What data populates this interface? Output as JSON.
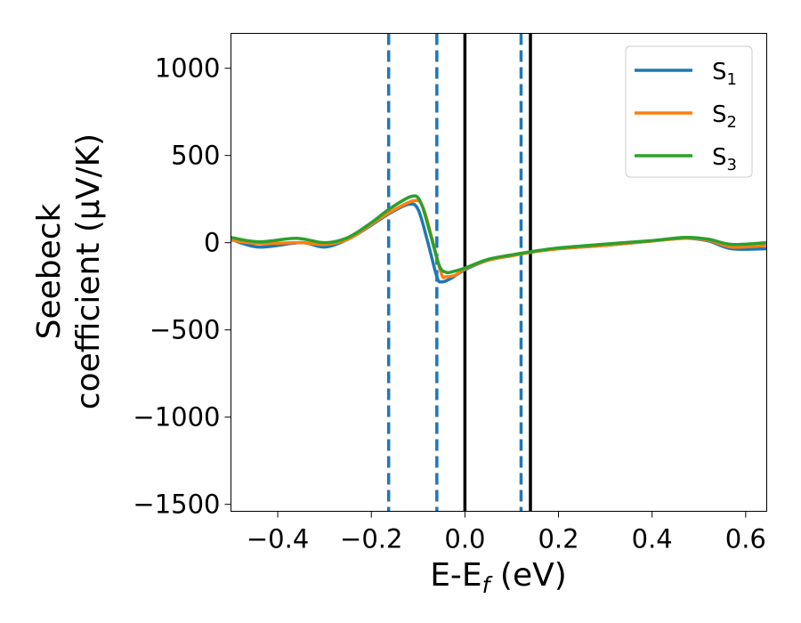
{
  "chart_data": {
    "type": "line",
    "xlabel": "E-E_f (eV)",
    "xlabel_main": "E-E",
    "xlabel_sub": "f",
    "xlabel_tail": " (eV)",
    "ylabel_lines": [
      "Seebeck",
      "coefficient  (μV/K)"
    ],
    "xlim": [
      -0.5,
      0.645
    ],
    "ylim": [
      -1540,
      1200
    ],
    "xticks": [
      -0.4,
      -0.2,
      0.0,
      0.2,
      0.4,
      0.6
    ],
    "xtick_labels": [
      "−0.4",
      "−0.2",
      "0.0",
      "0.2",
      "0.4",
      "0.6"
    ],
    "yticks": [
      1000,
      500,
      0,
      -500,
      -1000,
      -1500
    ],
    "ytick_labels": [
      "1000",
      "500",
      "0",
      "−500",
      "−1000",
      "−1500"
    ],
    "legend_position": "top-right",
    "vlines_dashed": [
      -0.163,
      -0.06,
      0.12
    ],
    "vlines_solid": [
      0.0,
      0.14
    ],
    "dashed_color": "#1f77b4",
    "solid_color": "#000000",
    "series": [
      {
        "name": "S1",
        "label": "S",
        "sub": "1",
        "color": "#1f77b4",
        "x": [
          -0.5,
          -0.44,
          -0.35,
          -0.3,
          -0.25,
          -0.2,
          -0.163,
          -0.12,
          -0.1,
          -0.08,
          -0.06,
          -0.05,
          -0.03,
          0,
          0.05,
          0.1,
          0.14,
          0.2,
          0.3,
          0.4,
          0.47,
          0.52,
          0.57,
          0.645
        ],
        "y": [
          20,
          -25,
          0,
          -25,
          20,
          100,
          165,
          220,
          190,
          10,
          -195,
          -225,
          -205,
          -155,
          -100,
          -75,
          -55,
          -35,
          -15,
          10,
          25,
          10,
          -35,
          -35
        ]
      },
      {
        "name": "S2",
        "label": "S",
        "sub": "2",
        "color": "#ff7f0e",
        "x": [
          -0.5,
          -0.44,
          -0.35,
          -0.3,
          -0.25,
          -0.2,
          -0.163,
          -0.11,
          -0.09,
          -0.07,
          -0.05,
          -0.04,
          -0.02,
          0,
          0.05,
          0.1,
          0.14,
          0.2,
          0.3,
          0.4,
          0.47,
          0.52,
          0.57,
          0.645
        ],
        "y": [
          15,
          -5,
          0,
          -10,
          20,
          105,
          170,
          240,
          205,
          20,
          -180,
          -195,
          -185,
          -150,
          -100,
          -75,
          -55,
          -35,
          -15,
          10,
          25,
          15,
          -25,
          -15
        ]
      },
      {
        "name": "S3",
        "label": "S",
        "sub": "3",
        "color": "#2ca02c",
        "x": [
          -0.5,
          -0.44,
          -0.36,
          -0.3,
          -0.25,
          -0.2,
          -0.163,
          -0.115,
          -0.095,
          -0.075,
          -0.055,
          -0.04,
          -0.025,
          0,
          0.05,
          0.1,
          0.14,
          0.2,
          0.3,
          0.4,
          0.47,
          0.52,
          0.57,
          0.645
        ],
        "y": [
          30,
          5,
          25,
          0,
          30,
          115,
          190,
          265,
          235,
          60,
          -130,
          -170,
          -165,
          -145,
          -95,
          -70,
          -52,
          -30,
          -8,
          12,
          30,
          20,
          -10,
          0
        ]
      }
    ]
  }
}
